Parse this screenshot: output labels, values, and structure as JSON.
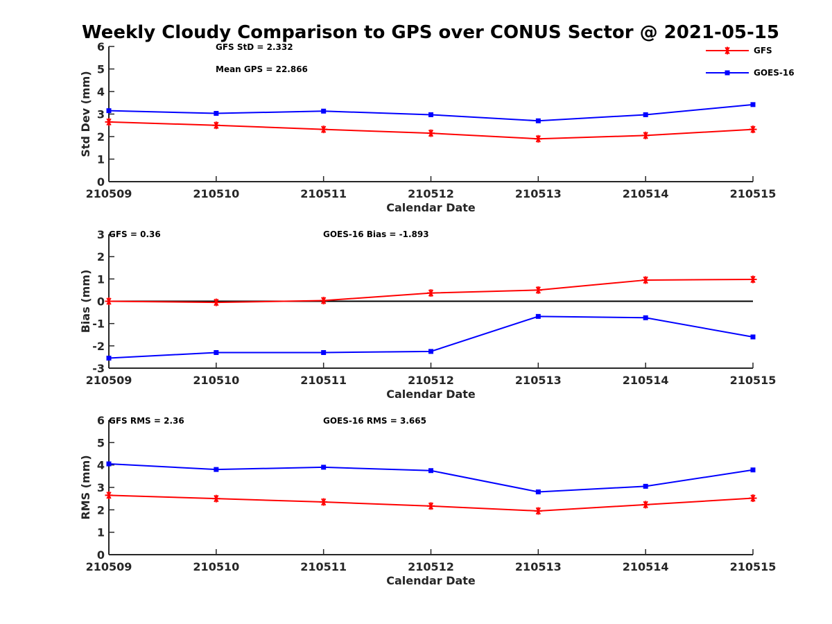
{
  "figure": {
    "title": "Weekly Cloudy Comparison to GPS over CONUS Sector @ 2021-05-15"
  },
  "legend": {
    "entries": [
      {
        "name": "GFS",
        "color": "#ff0000",
        "marker": "asterisk"
      },
      {
        "name": "GOES-16",
        "color": "#0000ff",
        "marker": "square"
      }
    ],
    "position": "top-right"
  },
  "chart_data": [
    {
      "type": "line",
      "xlabel": "Calendar Date",
      "ylabel": "Std Dev (mm)",
      "categories": [
        "210509",
        "210510",
        "210511",
        "210512",
        "210513",
        "210514",
        "210515"
      ],
      "ylim": [
        0,
        6
      ],
      "yticks": [
        0,
        1,
        2,
        3,
        4,
        5,
        6
      ],
      "annotations": [
        "GFS StD = 2.332",
        "Mean GPS = 22.866"
      ],
      "series": [
        {
          "name": "GFS",
          "color": "#ff0000",
          "marker": "asterisk",
          "values": [
            2.65,
            2.5,
            2.32,
            2.15,
            1.9,
            2.05,
            2.32
          ]
        },
        {
          "name": "GOES-16",
          "color": "#0000ff",
          "marker": "square",
          "values": [
            3.15,
            3.03,
            3.13,
            2.97,
            2.7,
            2.97,
            3.42
          ]
        }
      ]
    },
    {
      "type": "line",
      "xlabel": "Calendar Date",
      "ylabel": "Bias (mm)",
      "categories": [
        "210509",
        "210510",
        "210511",
        "210512",
        "210513",
        "210514",
        "210515"
      ],
      "ylim": [
        -3,
        3
      ],
      "yticks": [
        -3,
        -2,
        -1,
        0,
        1,
        2,
        3
      ],
      "zero_line": true,
      "annotations": [
        "GFS = 0.36",
        "GOES-16 Bias  = -1.893"
      ],
      "series": [
        {
          "name": "GFS",
          "color": "#ff0000",
          "marker": "asterisk",
          "values": [
            0.0,
            -0.05,
            0.03,
            0.37,
            0.5,
            0.95,
            0.98
          ]
        },
        {
          "name": "GOES-16",
          "color": "#0000ff",
          "marker": "square",
          "values": [
            -2.55,
            -2.3,
            -2.3,
            -2.25,
            -0.68,
            -0.74,
            -1.6
          ]
        }
      ]
    },
    {
      "type": "line",
      "xlabel": "Calendar Date",
      "ylabel": "RMS (mm)",
      "categories": [
        "210509",
        "210510",
        "210511",
        "210512",
        "210513",
        "210514",
        "210515"
      ],
      "ylim": [
        0,
        6
      ],
      "yticks": [
        0,
        1,
        2,
        3,
        4,
        5,
        6
      ],
      "annotations": [
        "GFS RMS = 2.36",
        "GOES-16 RMS = 3.665"
      ],
      "series": [
        {
          "name": "GFS",
          "color": "#ff0000",
          "marker": "asterisk",
          "values": [
            2.65,
            2.5,
            2.35,
            2.17,
            1.95,
            2.23,
            2.52
          ]
        },
        {
          "name": "GOES-16",
          "color": "#0000ff",
          "marker": "square",
          "values": [
            4.05,
            3.8,
            3.9,
            3.75,
            2.8,
            3.05,
            3.78
          ]
        }
      ]
    }
  ]
}
